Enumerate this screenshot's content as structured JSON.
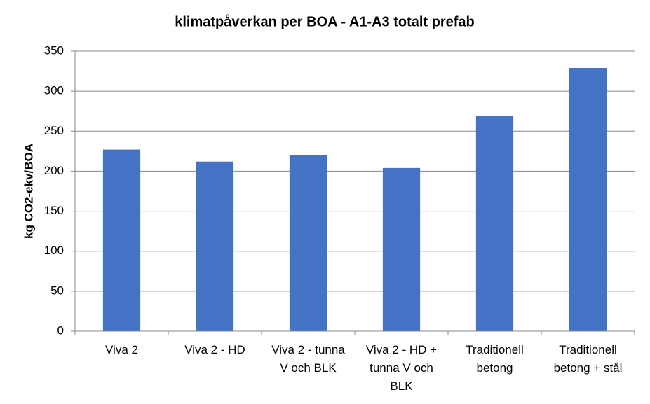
{
  "chart_data": {
    "type": "bar",
    "title": "klimatpåverkan per BOA - A1-A3 totalt prefab",
    "y_label": "kg CO2-ekv/BOA",
    "categories": [
      "Viva 2",
      "Viva 2 - HD",
      "Viva 2 - tunna V och BLK",
      "Viva 2 - HD + tunna V och BLK",
      "Traditionell betong",
      "Traditionell betong + stål"
    ],
    "values": [
      227,
      212,
      220,
      204,
      269,
      329
    ],
    "color": "#4472c4",
    "ylim": [
      0,
      350
    ],
    "yticks": [
      0,
      50,
      100,
      150,
      200,
      250,
      300,
      350
    ],
    "grid": true
  }
}
